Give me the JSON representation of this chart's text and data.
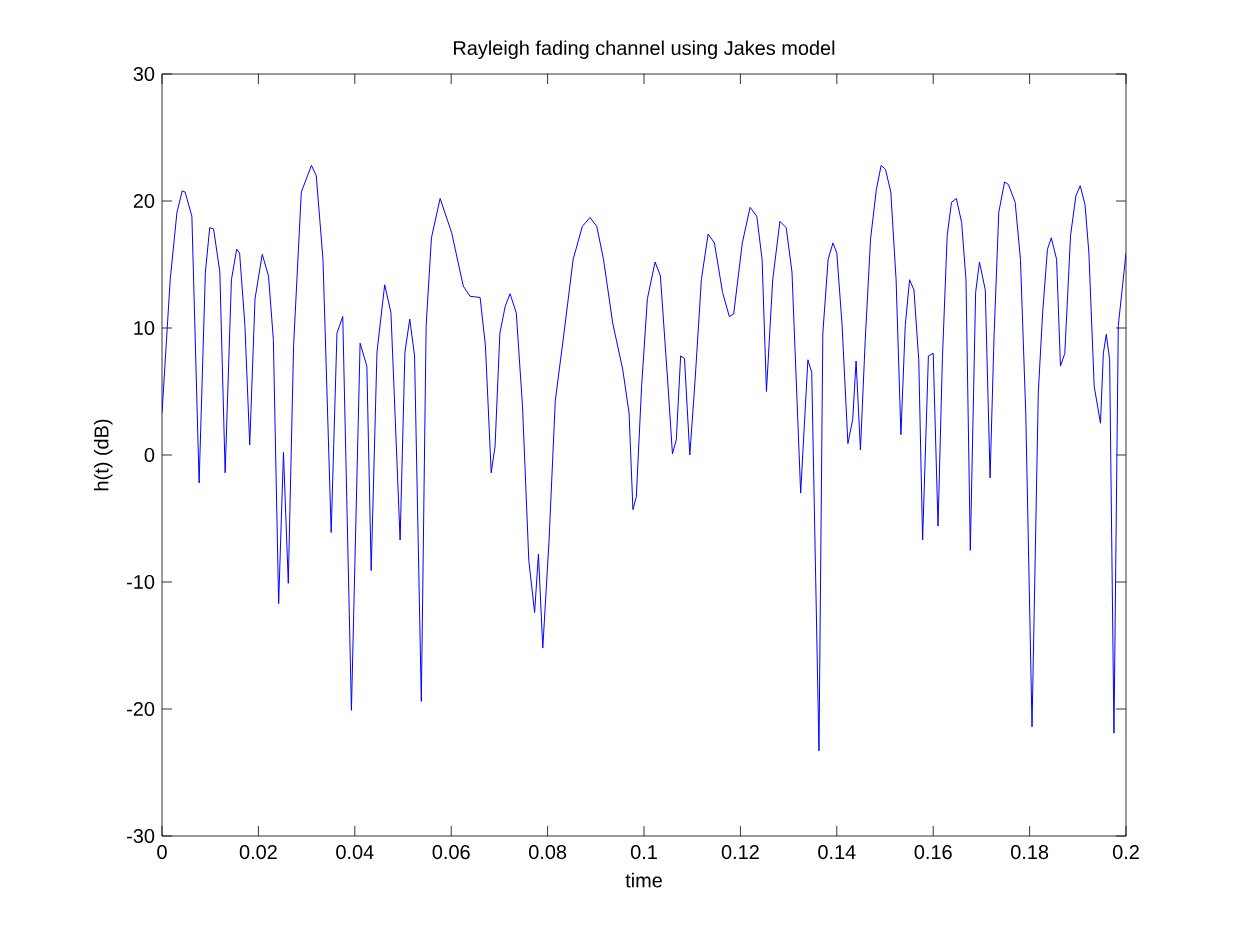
{
  "chart_data": {
    "type": "line",
    "title": "Rayleigh fading channel using Jakes model",
    "xlabel": "time",
    "ylabel": "h(t) (dB)",
    "xlim": [
      0,
      0.2
    ],
    "ylim": [
      -30,
      30
    ],
    "xticks": [
      0,
      0.02,
      0.04,
      0.06,
      0.08,
      0.1,
      0.12,
      0.14,
      0.16,
      0.18,
      0.2
    ],
    "yticks": [
      -30,
      -20,
      -10,
      0,
      10,
      20,
      30
    ],
    "grid": false,
    "marker": "none",
    "line_style": "solid",
    "series": [
      {
        "color": "#0000ff",
        "x": [
          0,
          0.0017,
          0.0031,
          0.0042,
          0.0048,
          0.0062,
          0.0077,
          0.009,
          0.0099,
          0.0107,
          0.012,
          0.0131,
          0.0144,
          0.0155,
          0.0161,
          0.0172,
          0.0182,
          0.0193,
          0.0208,
          0.0221,
          0.0231,
          0.0242,
          0.0252,
          0.0262,
          0.0273,
          0.0289,
          0.031,
          0.032,
          0.0334,
          0.0351,
          0.0363,
          0.0375,
          0.0393,
          0.0411,
          0.0425,
          0.0434,
          0.0446,
          0.0462,
          0.0475,
          0.0494,
          0.0504,
          0.0514,
          0.0524,
          0.0538,
          0.0548,
          0.0559,
          0.0577,
          0.0601,
          0.0625,
          0.0639,
          0.066,
          0.0671,
          0.0683,
          0.0691,
          0.0701,
          0.0712,
          0.0722,
          0.0735,
          0.0748,
          0.0761,
          0.0773,
          0.0781,
          0.079,
          0.0803,
          0.0816,
          0.0834,
          0.0853,
          0.0872,
          0.0888,
          0.0902,
          0.0916,
          0.0935,
          0.0956,
          0.0969,
          0.0977,
          0.0984,
          0.0995,
          0.1007,
          0.1023,
          0.1034,
          0.1049,
          0.1059,
          0.1067,
          0.1076,
          0.1084,
          0.1095,
          0.1106,
          0.1119,
          0.1133,
          0.1146,
          0.1163,
          0.1177,
          0.1186,
          0.1204,
          0.122,
          0.1234,
          0.1245,
          0.1254,
          0.1267,
          0.1282,
          0.1295,
          0.1307,
          0.1325,
          0.134,
          0.1348,
          0.1363,
          0.1371,
          0.1382,
          0.1392,
          0.14,
          0.1411,
          0.1423,
          0.1433,
          0.144,
          0.1449,
          0.1459,
          0.147,
          0.1482,
          0.1492,
          0.1501,
          0.1512,
          0.1523,
          0.1533,
          0.1542,
          0.1551,
          0.156,
          0.157,
          0.1578,
          0.159,
          0.16,
          0.161,
          0.1619,
          0.1629,
          0.1638,
          0.1648,
          0.1659,
          0.1668,
          0.1677,
          0.1688,
          0.1696,
          0.1708,
          0.1718,
          0.1726,
          0.1736,
          0.1748,
          0.1756,
          0.177,
          0.1781,
          0.1792,
          0.1805,
          0.1818,
          0.1827,
          0.1837,
          0.1845,
          0.1856,
          0.1864,
          0.1873,
          0.1885,
          0.1896,
          0.1905,
          0.1915,
          0.1923,
          0.1934,
          0.1947,
          0.1953,
          0.1959,
          0.1966,
          0.1975,
          0.1984,
          0.2
        ],
        "values": [
          3.3,
          13.8,
          19.1,
          20.8,
          20.7,
          18.8,
          -2.2,
          14.4,
          17.9,
          17.8,
          14.4,
          -1.4,
          13.8,
          16.2,
          15.9,
          10.2,
          0.8,
          12.3,
          15.8,
          14.1,
          9.1,
          -11.7,
          0.2,
          -10.1,
          8.6,
          20.7,
          22.8,
          22.0,
          15.4,
          -6.1,
          9.6,
          10.9,
          -20.1,
          8.8,
          7.0,
          -9.1,
          8.1,
          13.4,
          11.2,
          -6.7,
          8.1,
          10.7,
          7.8,
          -19.4,
          10.2,
          17.1,
          20.2,
          17.5,
          13.3,
          12.5,
          12.4,
          8.6,
          -1.4,
          0.7,
          9.6,
          11.7,
          12.7,
          11.2,
          3.8,
          -8.3,
          -12.4,
          -7.8,
          -15.2,
          -6.7,
          4.3,
          9.6,
          15.4,
          18.0,
          18.7,
          18.0,
          15.4,
          10.4,
          6.7,
          3.3,
          -4.3,
          -3.3,
          5.4,
          12.3,
          15.2,
          14.1,
          5.9,
          0.1,
          1.2,
          7.8,
          7.6,
          0,
          5.9,
          13.8,
          17.4,
          16.7,
          12.8,
          10.9,
          11.1,
          16.7,
          19.5,
          18.8,
          15.4,
          5.0,
          13.8,
          18.4,
          17.9,
          14.4,
          -3.0,
          7.5,
          6.5,
          -23.3,
          9.6,
          15.4,
          16.7,
          15.9,
          10.2,
          0.9,
          2.8,
          7.4,
          0.4,
          9.1,
          17.0,
          20.9,
          22.8,
          22.5,
          20.7,
          13.8,
          1.6,
          10.2,
          13.8,
          13.0,
          7.5,
          -6.7,
          7.8,
          8.0,
          -5.6,
          7.5,
          17.3,
          19.9,
          20.2,
          18.3,
          13.8,
          -7.5,
          12.8,
          15.2,
          13.0,
          -1.8,
          9.1,
          19.1,
          21.5,
          21.3,
          19.9,
          15.4,
          3.3,
          -21.4,
          4.9,
          11.2,
          16.2,
          17.1,
          15.4,
          7.0,
          8.0,
          17.3,
          20.4,
          21.2,
          19.7,
          15.9,
          5.4,
          2.5,
          8.0,
          9.5,
          7.5,
          -21.9,
          10.2,
          15.9
        ]
      }
    ]
  }
}
